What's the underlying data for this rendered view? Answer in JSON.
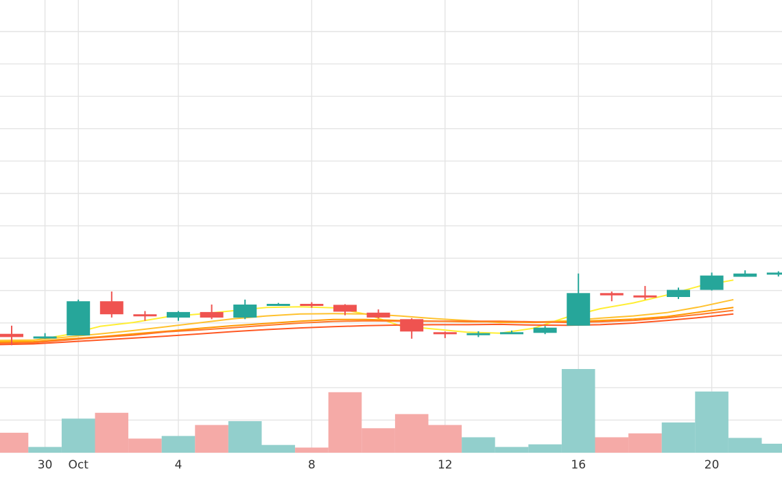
{
  "chart_data": {
    "type": "candlestick",
    "title": "",
    "xlabel": "",
    "ylabel": "",
    "x_axis": {
      "ticks": [
        {
          "x": "2021-09-30",
          "label": "30"
        },
        {
          "x": "2021-10-01",
          "label": "Oct"
        },
        {
          "x": "2021-10-04",
          "label": "4"
        },
        {
          "x": "2021-10-08",
          "label": "8"
        },
        {
          "x": "2021-10-12",
          "label": "12"
        },
        {
          "x": "2021-10-16",
          "label": "16"
        },
        {
          "x": "2021-10-20",
          "label": "20"
        }
      ],
      "range": [
        "2021-09-29",
        "2021-10-22"
      ]
    },
    "grid": true,
    "price_range": [
      33.8,
      47.7
    ],
    "volume_range": [
      0,
      13
    ],
    "colors": {
      "up": "#26a69a",
      "down": "#ef5350",
      "volume_up": "#92cfcc",
      "volume_down": "#f5aaa7",
      "grid": "#e4e4e4",
      "background": "#ffffff"
    },
    "candles": [
      {
        "date": "2021-09-29",
        "open": 37.45,
        "high": 37.7,
        "low": 37.1,
        "close": 37.35,
        "volume": 3.1
      },
      {
        "date": "2021-09-30",
        "open": 37.33,
        "high": 37.47,
        "low": 37.3,
        "close": 37.37,
        "volume": 0.9
      },
      {
        "date": "2021-10-01",
        "open": 37.4,
        "high": 38.5,
        "low": 37.4,
        "close": 38.45,
        "volume": 5.3
      },
      {
        "date": "2021-10-02",
        "open": 38.45,
        "high": 38.75,
        "low": 37.95,
        "close": 38.05,
        "volume": 6.2
      },
      {
        "date": "2021-10-03",
        "open": 38.05,
        "high": 38.15,
        "low": 37.85,
        "close": 38.0,
        "volume": 2.2
      },
      {
        "date": "2021-10-04",
        "open": 37.95,
        "high": 38.15,
        "low": 37.85,
        "close": 38.12,
        "volume": 2.6
      },
      {
        "date": "2021-10-05",
        "open": 38.12,
        "high": 38.35,
        "low": 37.9,
        "close": 37.95,
        "volume": 4.3
      },
      {
        "date": "2021-10-06",
        "open": 37.95,
        "high": 38.5,
        "low": 37.9,
        "close": 38.35,
        "volume": 4.9
      },
      {
        "date": "2021-10-07",
        "open": 38.35,
        "high": 38.4,
        "low": 38.31,
        "close": 38.37,
        "volume": 1.2
      },
      {
        "date": "2021-10-08",
        "open": 38.37,
        "high": 38.42,
        "low": 38.25,
        "close": 38.34,
        "volume": 0.8
      },
      {
        "date": "2021-10-09",
        "open": 38.34,
        "high": 38.36,
        "low": 38.02,
        "close": 38.13,
        "volume": 9.4
      },
      {
        "date": "2021-10-10",
        "open": 38.1,
        "high": 38.2,
        "low": 37.92,
        "close": 37.95,
        "volume": 3.8
      },
      {
        "date": "2021-10-11",
        "open": 37.9,
        "high": 37.93,
        "low": 37.3,
        "close": 37.52,
        "volume": 6.0
      },
      {
        "date": "2021-10-12",
        "open": 37.5,
        "high": 37.52,
        "low": 37.32,
        "close": 37.45,
        "volume": 4.3
      },
      {
        "date": "2021-10-13",
        "open": 37.45,
        "high": 37.53,
        "low": 37.35,
        "close": 37.47,
        "volume": 2.4
      },
      {
        "date": "2021-10-14",
        "open": 37.5,
        "high": 37.55,
        "low": 37.45,
        "close": 37.5,
        "volume": 0.9
      },
      {
        "date": "2021-10-15",
        "open": 37.48,
        "high": 37.69,
        "low": 37.44,
        "close": 37.64,
        "volume": 1.3
      },
      {
        "date": "2021-10-16",
        "open": 37.7,
        "high": 39.3,
        "low": 37.7,
        "close": 38.7,
        "volume": 13.0
      },
      {
        "date": "2021-10-17",
        "open": 38.7,
        "high": 38.75,
        "low": 38.45,
        "close": 38.63,
        "volume": 2.4
      },
      {
        "date": "2021-10-18",
        "open": 38.63,
        "high": 38.92,
        "low": 38.5,
        "close": 38.6,
        "volume": 3.0
      },
      {
        "date": "2021-10-19",
        "open": 38.58,
        "high": 38.87,
        "low": 38.52,
        "close": 38.8,
        "volume": 4.7
      },
      {
        "date": "2021-10-20",
        "open": 38.8,
        "high": 39.33,
        "low": 38.78,
        "close": 39.24,
        "volume": 9.5
      },
      {
        "date": "2021-10-21",
        "open": 39.2,
        "high": 39.4,
        "low": 39.2,
        "close": 39.3,
        "volume": 2.3
      },
      {
        "date": "2021-10-22",
        "open": 39.3,
        "high": 39.37,
        "low": 39.21,
        "close": 39.33,
        "volume": 1.4
      }
    ],
    "moving_averages": [
      {
        "color": "#ffee33",
        "values": [
          37.22,
          37.25,
          37.42,
          37.68,
          37.8,
          37.97,
          38.06,
          38.16,
          38.26,
          38.28,
          38.25,
          38.05,
          37.7,
          37.6,
          37.5,
          37.47,
          37.62,
          37.96,
          38.22,
          38.4,
          38.64,
          38.92,
          39.1
        ]
      },
      {
        "color": "#ffc12d",
        "values": [
          37.25,
          37.26,
          37.35,
          37.45,
          37.55,
          37.67,
          37.79,
          37.91,
          38.0,
          38.06,
          38.07,
          38.06,
          38.0,
          37.92,
          37.86,
          37.8,
          37.81,
          37.85,
          37.93,
          38.0,
          38.1,
          38.28,
          38.5
        ]
      },
      {
        "color": "#ff9800",
        "values": [
          37.2,
          37.21,
          37.29,
          37.36,
          37.45,
          37.53,
          37.62,
          37.7,
          37.77,
          37.84,
          37.89,
          37.89,
          37.86,
          37.84,
          37.82,
          37.82,
          37.8,
          37.82,
          37.86,
          37.9,
          37.98,
          38.12,
          38.26
        ]
      },
      {
        "color": "#ff7629",
        "values": [
          37.16,
          37.18,
          37.26,
          37.34,
          37.41,
          37.51,
          37.57,
          37.64,
          37.71,
          37.78,
          37.83,
          37.85,
          37.84,
          37.84,
          37.84,
          37.84,
          37.82,
          37.8,
          37.82,
          37.86,
          37.94,
          38.05,
          38.17
        ]
      },
      {
        "color": "#ff5722",
        "values": [
          37.12,
          37.14,
          37.2,
          37.26,
          37.32,
          37.38,
          37.45,
          37.52,
          37.58,
          37.63,
          37.67,
          37.7,
          37.72,
          37.73,
          37.73,
          37.74,
          37.72,
          37.71,
          37.73,
          37.78,
          37.86,
          37.95,
          38.06
        ]
      }
    ]
  }
}
